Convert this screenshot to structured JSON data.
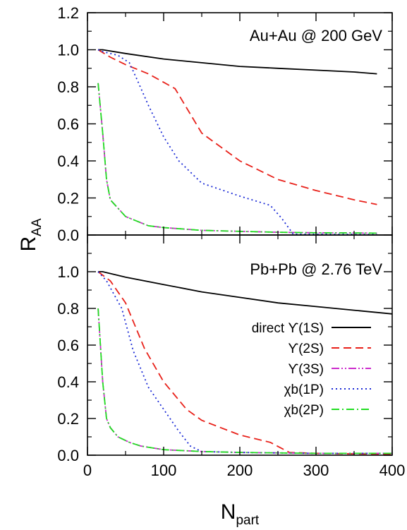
{
  "chart_data": {
    "type": "line",
    "xlabel": "N",
    "xlabel_sub": "part",
    "ylabel": "R",
    "ylabel_sub": "AA",
    "xlim": [
      0,
      400
    ],
    "ylim": [
      0.0,
      1.2
    ],
    "x_ticks": [
      0,
      100,
      200,
      300,
      400
    ],
    "y_ticks_top": [
      0.0,
      0.2,
      0.4,
      0.6,
      0.8,
      1.0,
      1.2
    ],
    "y_ticks_bottom": [
      0.0,
      0.2,
      0.4,
      0.6,
      0.8,
      1.0
    ],
    "legend_placement": "lower-right of bottom panel",
    "legend": [
      {
        "label": "direct ϒ(1S)",
        "color": "#000000",
        "dash": "solid"
      },
      {
        "label": "ϒ(2S)",
        "color": "#e8211a",
        "dash": "dashed"
      },
      {
        "label": "ϒ(3S)",
        "color": "#cc2ccc",
        "dash": "dash-dot-dot"
      },
      {
        "label": "χb(1P)",
        "color": "#1a2ad6",
        "dash": "dotted"
      },
      {
        "label": "χb(2P)",
        "color": "#22dd22",
        "dash": "dash-dot"
      }
    ],
    "panels": [
      {
        "label": "Au+Au @ 200 GeV",
        "series": [
          {
            "name": "direct ϒ(1S)",
            "x": [
              14,
              20,
              50,
              100,
              150,
              200,
              250,
              300,
              350,
              380
            ],
            "y": [
              1.0,
              1.0,
              0.98,
              0.95,
              0.93,
              0.91,
              0.9,
              0.89,
              0.88,
              0.87
            ]
          },
          {
            "name": "ϒ(2S)",
            "x": [
              14,
              30,
              50,
              80,
              115,
              150,
              200,
              250,
              300,
              350,
              380
            ],
            "y": [
              1.0,
              0.96,
              0.92,
              0.87,
              0.79,
              0.55,
              0.4,
              0.3,
              0.24,
              0.19,
              0.165
            ]
          },
          {
            "name": "ϒ(3S)",
            "x": [
              14,
              20,
              25,
              30,
              50,
              80,
              100,
              150,
              200,
              250,
              300,
              350,
              380
            ],
            "y": [
              0.82,
              0.55,
              0.3,
              0.19,
              0.1,
              0.05,
              0.04,
              0.025,
              0.02,
              0.015,
              0.012,
              0.011,
              0.01
            ]
          },
          {
            "name": "χb(1P)",
            "x": [
              14,
              20,
              40,
              55,
              65,
              80,
              100,
              120,
              150,
              200,
              240,
              255,
              270,
              300,
              380
            ],
            "y": [
              1.0,
              0.99,
              0.97,
              0.93,
              0.84,
              0.7,
              0.53,
              0.4,
              0.28,
              0.21,
              0.16,
              0.09,
              0.005,
              0.004,
              0.003
            ]
          },
          {
            "name": "χb(2P)",
            "x": [
              14,
              20,
              25,
              30,
              50,
              80,
              100,
              150,
              200,
              250,
              300,
              350,
              380
            ],
            "y": [
              0.82,
              0.55,
              0.3,
              0.19,
              0.1,
              0.05,
              0.04,
              0.025,
              0.02,
              0.015,
              0.012,
              0.011,
              0.01
            ]
          }
        ]
      },
      {
        "label": "Pb+Pb @ 2.76 TeV",
        "series": [
          {
            "name": "direct ϒ(1S)",
            "x": [
              14,
              20,
              50,
              100,
              150,
              200,
              250,
              300,
              350,
              400
            ],
            "y": [
              1.0,
              1.0,
              0.97,
              0.93,
              0.89,
              0.86,
              0.83,
              0.81,
              0.79,
              0.77
            ]
          },
          {
            "name": "ϒ(2S)",
            "x": [
              14,
              30,
              50,
              75,
              100,
              130,
              150,
              200,
              240,
              265,
              300,
              400
            ],
            "y": [
              1.0,
              0.95,
              0.83,
              0.58,
              0.4,
              0.25,
              0.19,
              0.11,
              0.07,
              0.015,
              0.01,
              0.005
            ]
          },
          {
            "name": "ϒ(3S)",
            "x": [
              14,
              20,
              25,
              30,
              40,
              55,
              70,
              100,
              150,
              200,
              300,
              400
            ],
            "y": [
              0.8,
              0.4,
              0.2,
              0.15,
              0.1,
              0.07,
              0.05,
              0.03,
              0.02,
              0.015,
              0.01,
              0.01
            ]
          },
          {
            "name": "χb(1P)",
            "x": [
              14,
              25,
              45,
              60,
              80,
              100,
              120,
              135,
              150,
              200,
              300,
              400
            ],
            "y": [
              1.0,
              0.95,
              0.8,
              0.57,
              0.37,
              0.25,
              0.13,
              0.05,
              0.02,
              0.015,
              0.01,
              0.01
            ]
          },
          {
            "name": "χb(2P)",
            "x": [
              14,
              20,
              25,
              30,
              40,
              55,
              70,
              100,
              150,
              200,
              300,
              400
            ],
            "y": [
              0.8,
              0.4,
              0.2,
              0.15,
              0.1,
              0.07,
              0.05,
              0.03,
              0.02,
              0.015,
              0.01,
              0.01
            ]
          }
        ]
      }
    ]
  }
}
